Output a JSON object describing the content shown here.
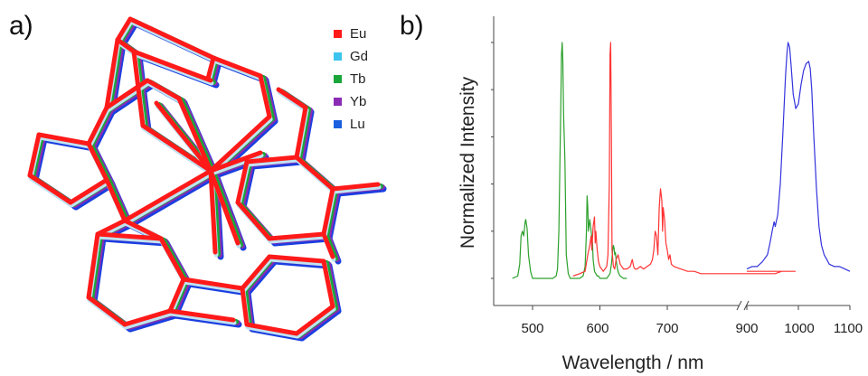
{
  "panels": {
    "a_label": "a)",
    "b_label": "b)"
  },
  "structure_legend": {
    "items": [
      {
        "label": "Eu",
        "color": "#ff1a1a"
      },
      {
        "label": "Gd",
        "color": "#3cc4ee"
      },
      {
        "label": "Tb",
        "color": "#1aa63a"
      },
      {
        "label": "Yb",
        "color": "#8a2bb5"
      },
      {
        "label": "Lu",
        "color": "#1a5fe0"
      }
    ]
  },
  "chart_data": {
    "type": "line",
    "title": "",
    "xlabel": "Wavelength / nm",
    "ylabel": "Normalized Intensity",
    "axis_break": true,
    "xlim_left": [
      450,
      900
    ],
    "xlim_right": [
      900,
      1100
    ],
    "ylim": [
      0,
      1
    ],
    "xticks_left": [
      "500",
      "600",
      "700"
    ],
    "xticks_right": [
      "900",
      "1000",
      "1100"
    ],
    "grid": false,
    "series": [
      {
        "color": "#2ca02c",
        "x": [
          470,
          478,
          481,
          483,
          485,
          487,
          489,
          490,
          492,
          494,
          497,
          500,
          505,
          510,
          515,
          520,
          525,
          530,
          535,
          537,
          539,
          541,
          542,
          543,
          544,
          545,
          546,
          548,
          550,
          553,
          556,
          560,
          565,
          570,
          575,
          578,
          580,
          581,
          582,
          583,
          585,
          587,
          589,
          590,
          592,
          594,
          596,
          598,
          600,
          605,
          610,
          615,
          617,
          619,
          620,
          621,
          622,
          623,
          624,
          626,
          628,
          630,
          635,
          640
        ],
        "y": [
          0.0,
          0.01,
          0.06,
          0.18,
          0.2,
          0.18,
          0.24,
          0.25,
          0.21,
          0.1,
          0.03,
          0.0,
          0.0,
          0.0,
          0.0,
          0.0,
          0.0,
          0.0,
          0.01,
          0.04,
          0.2,
          0.55,
          0.75,
          0.95,
          1.0,
          0.92,
          0.7,
          0.5,
          0.1,
          0.02,
          0.0,
          0.0,
          0.0,
          0.0,
          0.01,
          0.05,
          0.2,
          0.35,
          0.3,
          0.2,
          0.25,
          0.2,
          0.15,
          0.08,
          0.03,
          0.02,
          0.01,
          0.01,
          0.0,
          0.0,
          0.0,
          0.02,
          0.06,
          0.12,
          0.14,
          0.13,
          0.1,
          0.11,
          0.08,
          0.04,
          0.02,
          0.01,
          0.0,
          0.0
        ]
      },
      {
        "color": "#ff3333",
        "x": [
          560,
          570,
          578,
          582,
          585,
          587,
          588,
          590,
          592,
          593,
          594,
          596,
          598,
          600,
          605,
          610,
          612,
          614,
          615,
          616,
          617,
          618,
          620,
          622,
          624,
          627,
          630,
          635,
          640,
          645,
          648,
          650,
          652,
          655,
          660,
          665,
          670,
          675,
          678,
          680,
          682,
          684,
          686,
          688,
          690,
          692,
          693,
          694,
          696,
          698,
          700,
          702,
          704,
          706,
          710,
          720,
          730,
          740,
          750,
          760,
          770,
          780,
          790,
          800,
          810,
          820,
          830,
          840,
          850,
          860,
          870,
          880,
          890,
          900
        ],
        "y": [
          0.01,
          0.02,
          0.03,
          0.1,
          0.14,
          0.18,
          0.12,
          0.22,
          0.26,
          0.15,
          0.2,
          0.12,
          0.07,
          0.05,
          0.03,
          0.05,
          0.1,
          0.4,
          0.95,
          1.0,
          0.6,
          0.12,
          0.05,
          0.04,
          0.08,
          0.1,
          0.06,
          0.04,
          0.04,
          0.05,
          0.08,
          0.05,
          0.04,
          0.04,
          0.05,
          0.04,
          0.05,
          0.06,
          0.08,
          0.12,
          0.2,
          0.18,
          0.1,
          0.3,
          0.38,
          0.33,
          0.2,
          0.3,
          0.25,
          0.15,
          0.12,
          0.08,
          0.1,
          0.06,
          0.05,
          0.04,
          0.03,
          0.03,
          0.02,
          0.02,
          0.02,
          0.02,
          0.02,
          0.02,
          0.02,
          0.02,
          0.02,
          0.02,
          0.02,
          0.02,
          0.03,
          0.03,
          0.03,
          0.03
        ]
      },
      {
        "color": "#3333dd",
        "x": [
          900,
          910,
          920,
          930,
          940,
          945,
          950,
          953,
          955,
          960,
          965,
          970,
          975,
          978,
          980,
          983,
          986,
          990,
          995,
          1000,
          1005,
          1010,
          1015,
          1020,
          1023,
          1026,
          1030,
          1035,
          1040,
          1045,
          1050,
          1055,
          1060,
          1070,
          1080,
          1090,
          1100
        ],
        "y": [
          0.04,
          0.05,
          0.05,
          0.07,
          0.1,
          0.15,
          0.21,
          0.24,
          0.22,
          0.27,
          0.4,
          0.62,
          0.86,
          0.96,
          1.0,
          0.98,
          0.9,
          0.78,
          0.72,
          0.74,
          0.82,
          0.88,
          0.91,
          0.92,
          0.89,
          0.8,
          0.6,
          0.38,
          0.22,
          0.14,
          0.1,
          0.08,
          0.06,
          0.05,
          0.05,
          0.04,
          0.03
        ]
      }
    ]
  }
}
